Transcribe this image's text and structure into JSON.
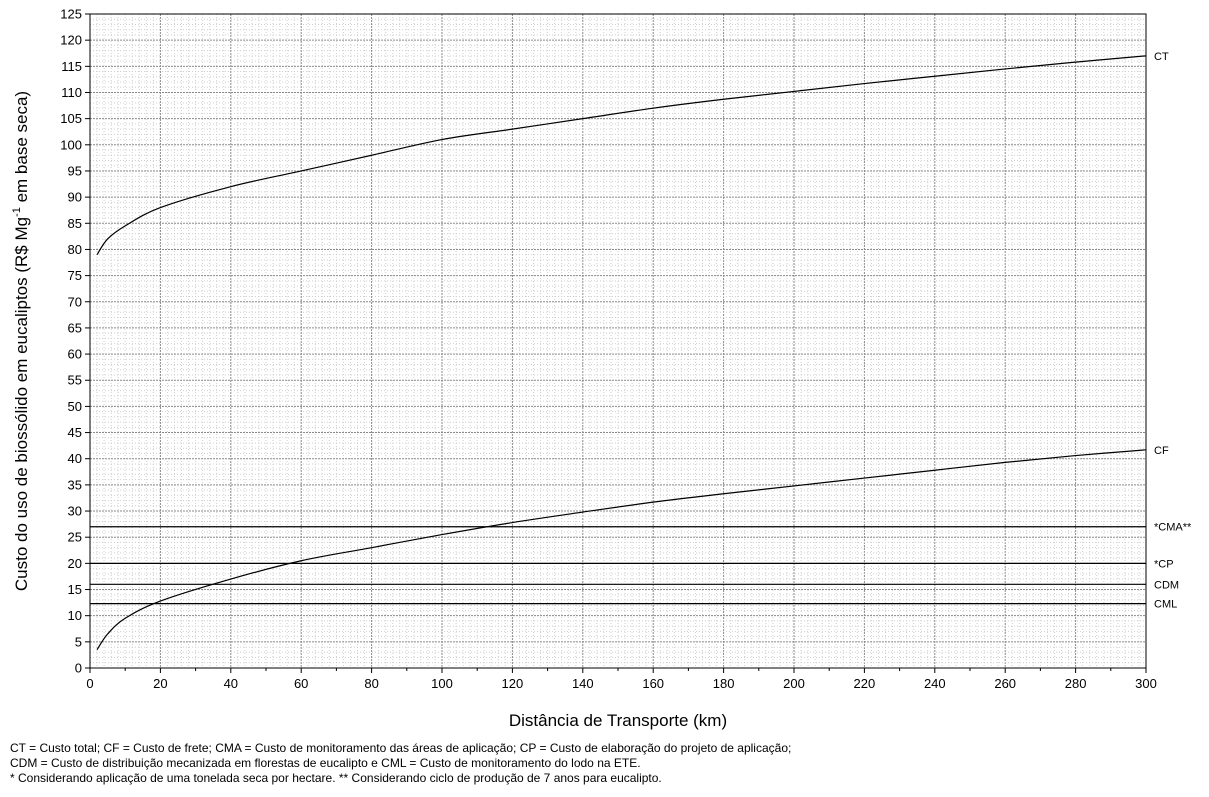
{
  "chart_data": {
    "type": "line",
    "xlabel": "Distância de Transporte (km)",
    "ylabel_parts": {
      "before": "Custo do uso de biossólido em eucaliptos (R$ Mg",
      "sup": "-1",
      "after": " em base seca)"
    },
    "xlim": [
      0,
      300
    ],
    "ylim": [
      0,
      125
    ],
    "x_ticks": [
      0,
      20,
      40,
      60,
      80,
      100,
      120,
      140,
      160,
      180,
      200,
      220,
      240,
      260,
      280,
      300
    ],
    "y_ticks": [
      0,
      5,
      10,
      15,
      20,
      25,
      30,
      35,
      40,
      45,
      50,
      55,
      60,
      65,
      70,
      75,
      80,
      85,
      90,
      95,
      100,
      105,
      110,
      115,
      120,
      125
    ],
    "grid": true,
    "series": [
      {
        "name": "CT",
        "x": [
          2,
          5,
          10,
          20,
          40,
          60,
          80,
          100,
          120,
          140,
          160,
          180,
          200,
          220,
          240,
          260,
          280,
          300
        ],
        "values": [
          79,
          82,
          84.5,
          88,
          92,
          95,
          98,
          101,
          103,
          105,
          107,
          108.7,
          110.2,
          111.7,
          113.1,
          114.5,
          115.8,
          117
        ]
      },
      {
        "name": "CF",
        "x": [
          2,
          5,
          10,
          20,
          40,
          60,
          80,
          100,
          120,
          140,
          160,
          180,
          200,
          220,
          240,
          260,
          280,
          300
        ],
        "values": [
          3.5,
          6.5,
          9.5,
          12.8,
          17,
          20.5,
          23,
          25.5,
          27.8,
          29.8,
          31.7,
          33.3,
          34.8,
          36.3,
          37.8,
          39.3,
          40.6,
          41.7
        ]
      },
      {
        "name": "*CMA**",
        "x": [
          0,
          300
        ],
        "values": [
          27,
          27
        ]
      },
      {
        "name": "*CP",
        "x": [
          0,
          300
        ],
        "values": [
          20,
          20
        ]
      },
      {
        "name": "CDM",
        "x": [
          0,
          300
        ],
        "values": [
          16,
          16
        ]
      },
      {
        "name": "CML",
        "x": [
          0,
          300
        ],
        "values": [
          12.3,
          12.3
        ]
      }
    ]
  },
  "footnotes": [
    "CT = Custo total; CF = Custo de frete; CMA = Custo de monitoramento das áreas de aplicação; CP = Custo de elaboração do projeto de aplicação;",
    "CDM = Custo de distribuição mecanizada em florestas de eucalipto e CML = Custo de monitoramento do lodo na ETE.",
    "* Considerando aplicação de uma tonelada seca por hectare. ** Considerando ciclo de produção de 7 anos para eucalipto."
  ]
}
